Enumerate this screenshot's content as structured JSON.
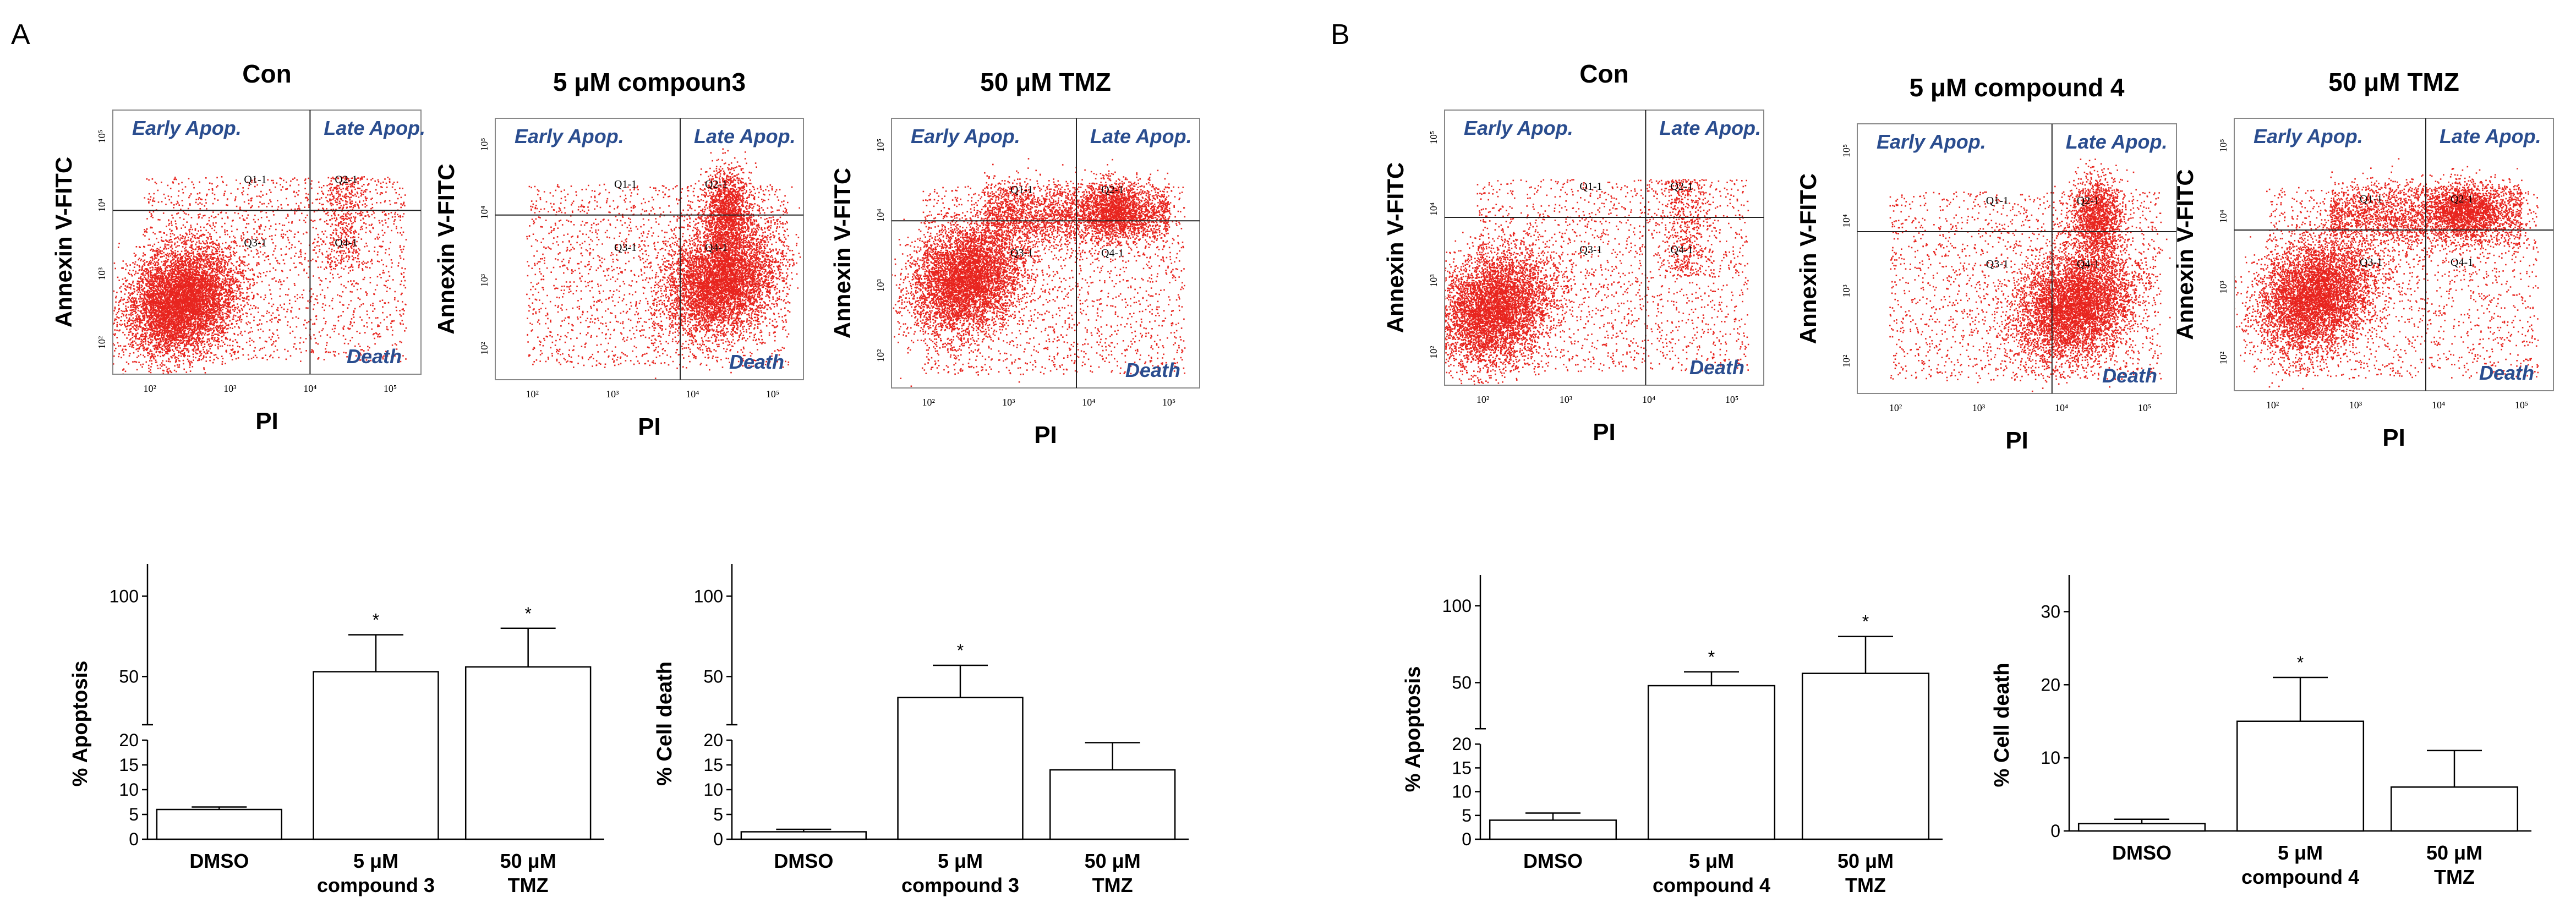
{
  "panels": {
    "a_label": "A",
    "b_label": "B"
  },
  "flow_labels": {
    "y_axis": "Annexin V-FITC",
    "x_axis": "PI",
    "early": "Early Apop.",
    "late": "Late Apop.",
    "death": "Death",
    "q1": "Q1-1",
    "q2": "Q2-1",
    "q3": "Q3-1",
    "q4": "Q4-1"
  },
  "flow_plots": [
    {
      "title": "Con",
      "ticks": [
        "10²",
        "10³",
        "10⁴",
        "10⁵"
      ]
    },
    {
      "title": "5 μM compoun3",
      "ticks": [
        "10²",
        "10³",
        "10⁴",
        "10⁵"
      ]
    },
    {
      "title": "50 μM TMZ",
      "ticks": [
        "10²",
        "10³",
        "10⁴",
        "10⁵"
      ]
    },
    {
      "title": "Con",
      "ticks": [
        "10²",
        "10³",
        "10⁴",
        "10⁵"
      ]
    },
    {
      "title": "5 μM compound 4",
      "ticks": [
        "10²",
        "10³",
        "10⁴",
        "10⁵"
      ]
    },
    {
      "title": "50 μM TMZ",
      "ticks": [
        "10²",
        "10³",
        "10⁴",
        "10⁵"
      ]
    }
  ],
  "chart_data": [
    {
      "type": "bar",
      "title": "",
      "ylabel": "% Apoptosis",
      "xlabel": "",
      "categories": [
        "DMSO",
        "5 μM compound 3",
        "50 μM TMZ"
      ],
      "category_lines": [
        [
          "DMSO"
        ],
        [
          "5 μM",
          "compound 3"
        ],
        [
          "50 μM",
          "TMZ"
        ]
      ],
      "values": [
        6,
        53,
        56
      ],
      "errors": [
        0.5,
        23,
        24
      ],
      "significance": [
        "",
        "*",
        "*"
      ],
      "axis_break": true,
      "y_ticks": [
        "0",
        "5",
        "10",
        "15",
        "20",
        "50",
        "100"
      ],
      "ylim": [
        0,
        120
      ]
    },
    {
      "type": "bar",
      "title": "",
      "ylabel": "% Cell death",
      "xlabel": "",
      "categories": [
        "DMSO",
        "5 μM compound 3",
        "50 μM TMZ"
      ],
      "category_lines": [
        [
          "DMSO"
        ],
        [
          "5 μM",
          "compound 3"
        ],
        [
          "50 μM",
          "TMZ"
        ]
      ],
      "values": [
        1.5,
        37,
        14
      ],
      "errors": [
        0.5,
        20,
        5.5
      ],
      "significance": [
        "",
        "*",
        ""
      ],
      "axis_break": true,
      "y_ticks": [
        "0",
        "5",
        "10",
        "15",
        "20",
        "50",
        "100"
      ],
      "ylim": [
        0,
        120
      ]
    },
    {
      "type": "bar",
      "title": "",
      "ylabel": "% Apoptosis",
      "xlabel": "",
      "categories": [
        "DMSO",
        "5 μM compound 4",
        "50 μM TMZ"
      ],
      "category_lines": [
        [
          "DMSO"
        ],
        [
          "5 μM",
          "compound 4"
        ],
        [
          "50 μM",
          "TMZ"
        ]
      ],
      "values": [
        4,
        48,
        56
      ],
      "errors": [
        1.5,
        9,
        24
      ],
      "significance": [
        "",
        "*",
        "*"
      ],
      "axis_break": true,
      "y_ticks": [
        "0",
        "5",
        "10",
        "15",
        "20",
        "50",
        "100"
      ],
      "ylim": [
        0,
        120
      ]
    },
    {
      "type": "bar",
      "title": "",
      "ylabel": "% Cell death",
      "xlabel": "",
      "categories": [
        "DMSO",
        "5 μM compound 4",
        "50 μM TMZ"
      ],
      "category_lines": [
        [
          "DMSO"
        ],
        [
          "5 μM",
          "compound 4"
        ],
        [
          "50 μM",
          "TMZ"
        ]
      ],
      "values": [
        1,
        15,
        6
      ],
      "errors": [
        0.6,
        6,
        5
      ],
      "significance": [
        "",
        "*",
        ""
      ],
      "axis_break": false,
      "y_ticks": [
        "0",
        "10",
        "20",
        "30"
      ],
      "ylim": [
        0,
        35
      ]
    }
  ]
}
